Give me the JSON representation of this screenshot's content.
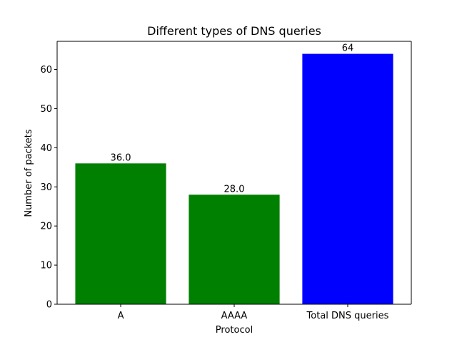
{
  "chart_data": {
    "type": "bar",
    "title": "Different types of DNS queries",
    "xlabel": "Protocol",
    "ylabel": "Number of packets",
    "categories": [
      "A",
      "AAAA",
      "Total DNS queries"
    ],
    "values": [
      36,
      28,
      64
    ],
    "data_labels": [
      "36.0",
      "28.0",
      "64"
    ],
    "bar_colors": [
      "#008000",
      "#008000",
      "#0000ff"
    ],
    "ylim": [
      0,
      67.2
    ],
    "yticks": [
      0,
      10,
      20,
      30,
      40,
      50,
      60
    ],
    "grid": false,
    "legend": "none"
  }
}
